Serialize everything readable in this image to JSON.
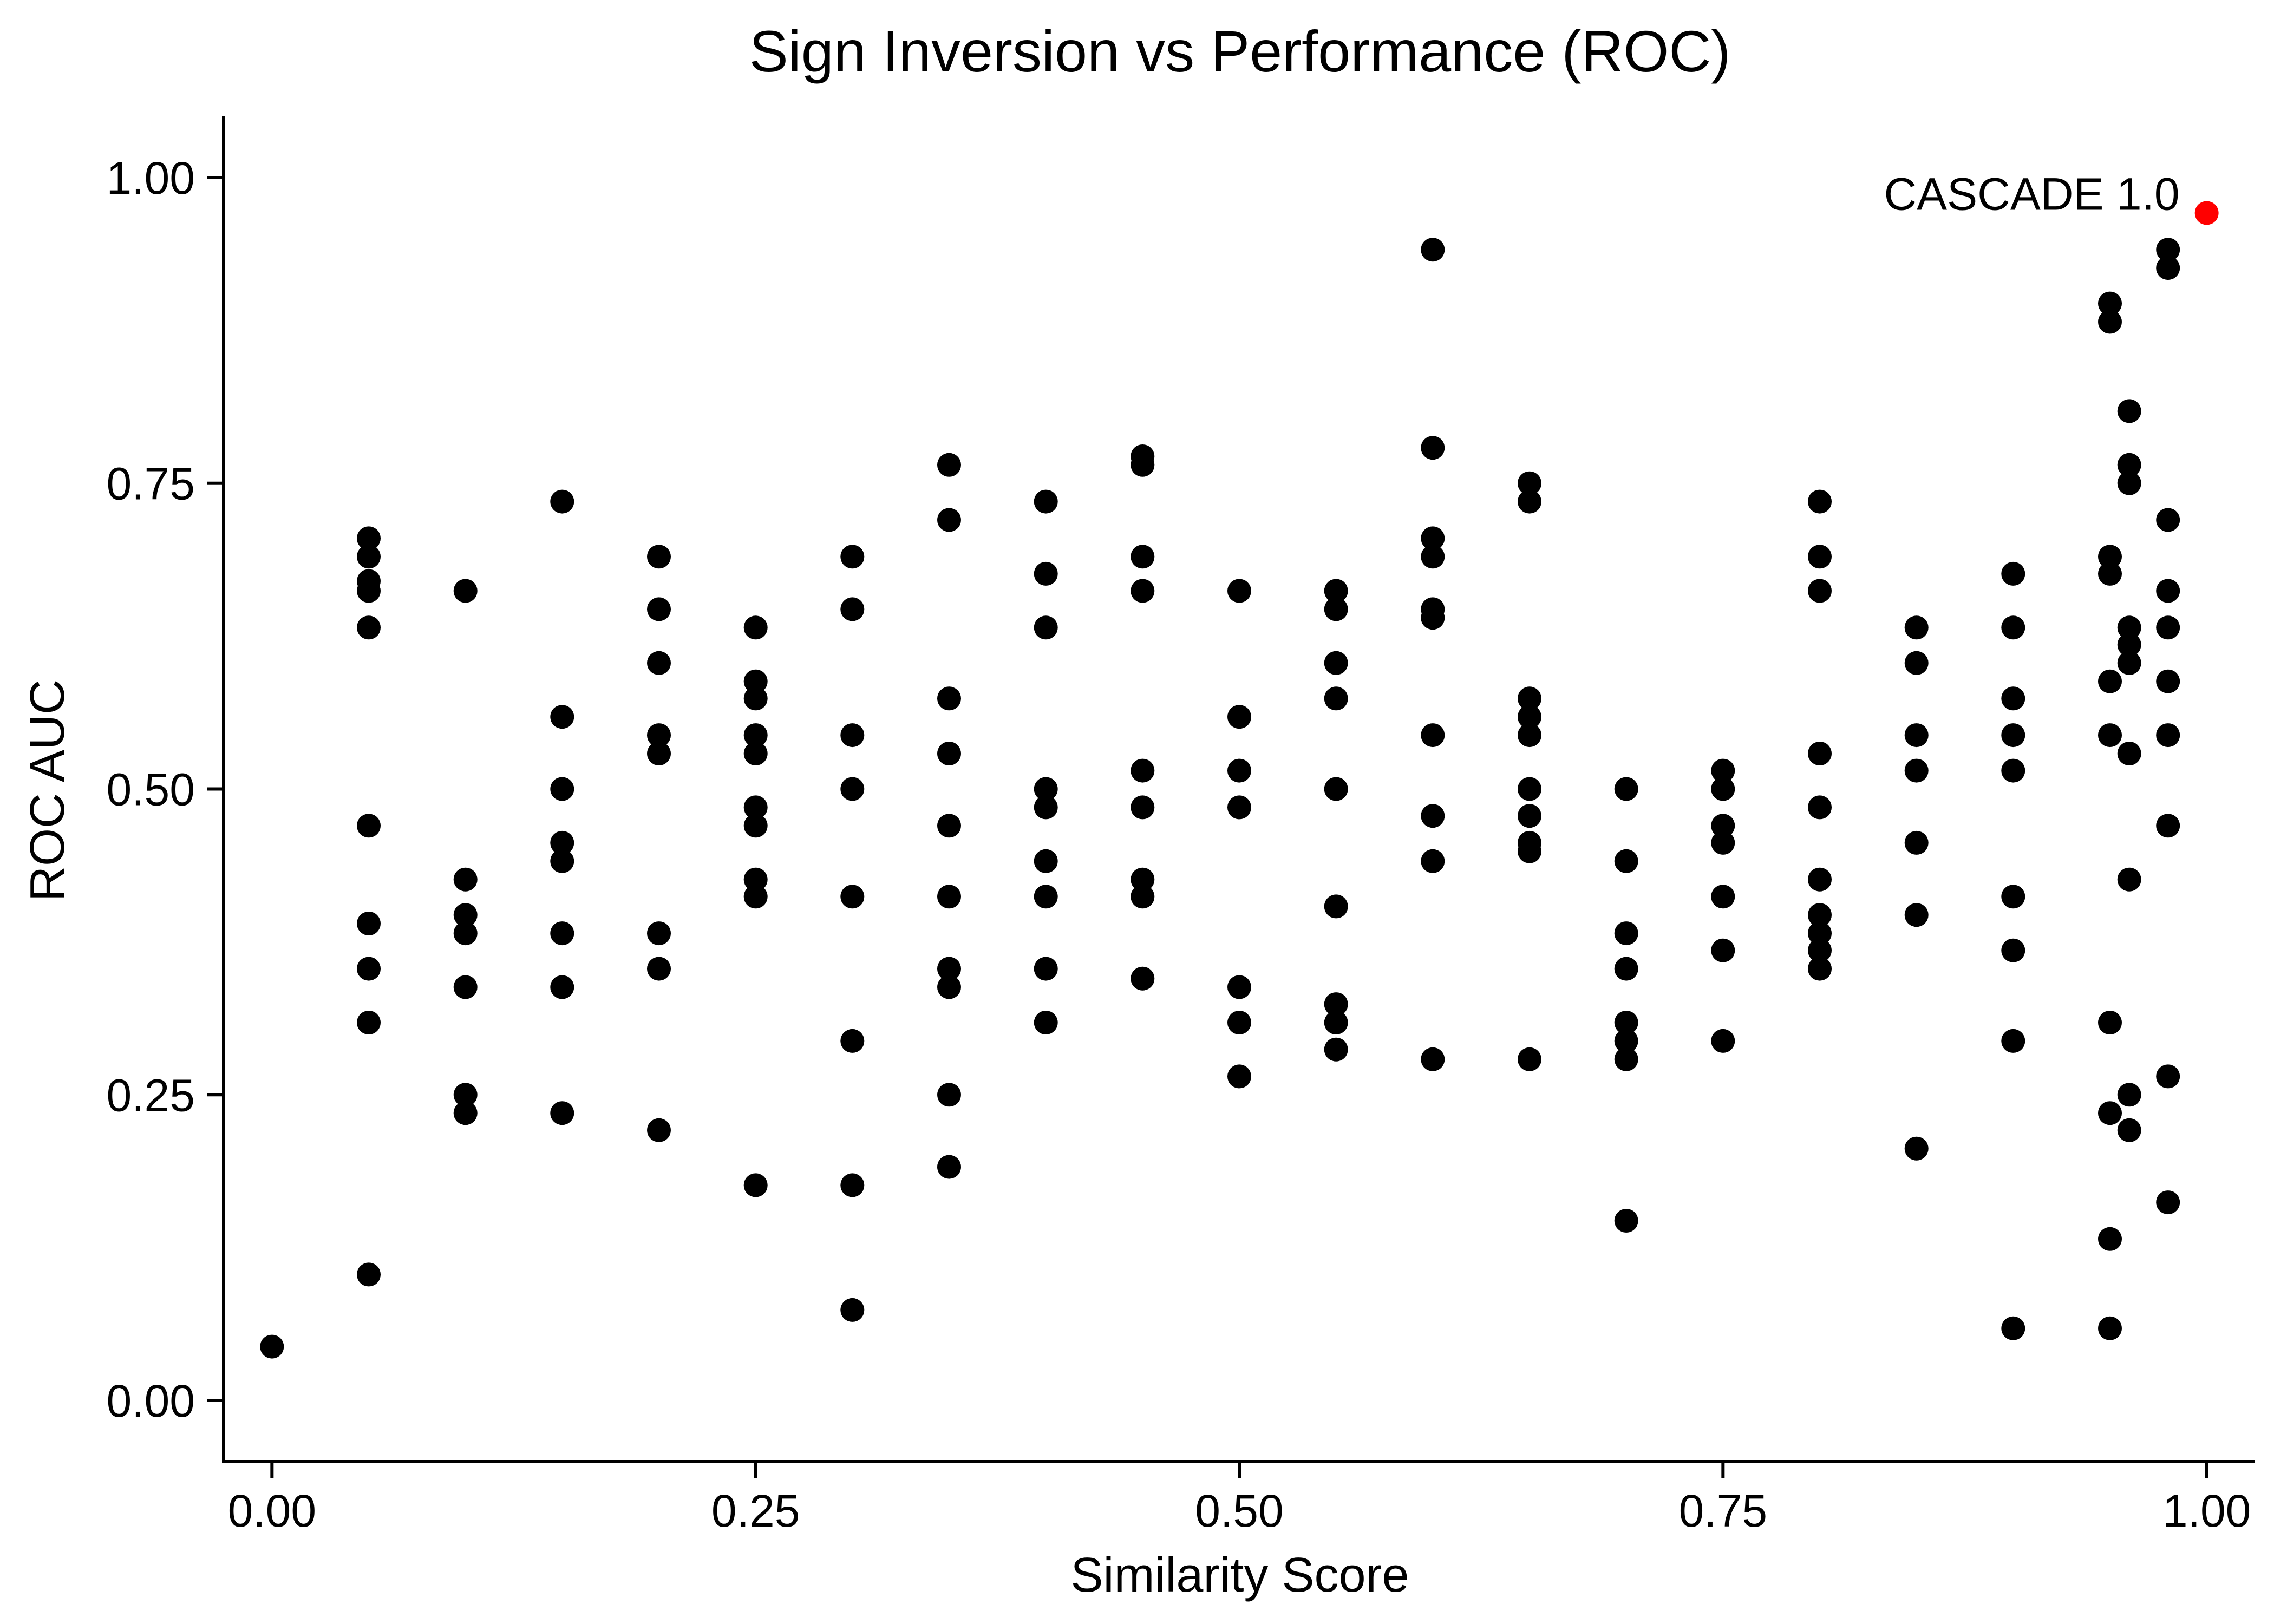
{
  "chart_data": {
    "type": "scatter",
    "title": "Sign Inversion vs Performance (ROC)",
    "xlabel": "Similarity Score",
    "ylabel": "ROC AUC",
    "xlim": [
      -0.025,
      1.025
    ],
    "ylim": [
      -0.05,
      1.05
    ],
    "x_ticks": [
      0,
      0.25,
      0.5,
      0.75,
      1
    ],
    "x_tick_labels": [
      "0.00",
      "0.25",
      "0.50",
      "0.75",
      "1.00"
    ],
    "y_ticks": [
      0,
      0.25,
      0.5,
      0.75,
      1
    ],
    "y_tick_labels": [
      "0.00",
      "0.25",
      "0.50",
      "0.75",
      "1.00"
    ],
    "grid": false,
    "legend": "none",
    "point_color": "#000000",
    "highlight_color": "#ff0000",
    "points": [
      [
        0.0,
        0.044
      ],
      [
        0.05,
        0.705
      ],
      [
        0.05,
        0.69
      ],
      [
        0.05,
        0.67
      ],
      [
        0.05,
        0.662
      ],
      [
        0.05,
        0.632
      ],
      [
        0.05,
        0.47
      ],
      [
        0.05,
        0.39
      ],
      [
        0.05,
        0.353
      ],
      [
        0.05,
        0.309
      ],
      [
        0.05,
        0.103
      ],
      [
        0.1,
        0.662
      ],
      [
        0.1,
        0.426
      ],
      [
        0.1,
        0.397
      ],
      [
        0.1,
        0.382
      ],
      [
        0.1,
        0.338
      ],
      [
        0.1,
        0.25
      ],
      [
        0.1,
        0.235
      ],
      [
        0.15,
        0.735
      ],
      [
        0.15,
        0.559
      ],
      [
        0.15,
        0.5
      ],
      [
        0.15,
        0.456
      ],
      [
        0.15,
        0.441
      ],
      [
        0.15,
        0.382
      ],
      [
        0.15,
        0.338
      ],
      [
        0.15,
        0.235
      ],
      [
        0.2,
        0.69
      ],
      [
        0.2,
        0.647
      ],
      [
        0.2,
        0.603
      ],
      [
        0.2,
        0.544
      ],
      [
        0.2,
        0.529
      ],
      [
        0.2,
        0.382
      ],
      [
        0.2,
        0.353
      ],
      [
        0.2,
        0.221
      ],
      [
        0.25,
        0.632
      ],
      [
        0.25,
        0.588
      ],
      [
        0.25,
        0.574
      ],
      [
        0.25,
        0.544
      ],
      [
        0.25,
        0.529
      ],
      [
        0.25,
        0.485
      ],
      [
        0.25,
        0.47
      ],
      [
        0.25,
        0.426
      ],
      [
        0.25,
        0.412
      ],
      [
        0.25,
        0.176
      ],
      [
        0.3,
        0.69
      ],
      [
        0.3,
        0.647
      ],
      [
        0.3,
        0.544
      ],
      [
        0.3,
        0.5
      ],
      [
        0.3,
        0.412
      ],
      [
        0.3,
        0.294
      ],
      [
        0.3,
        0.176
      ],
      [
        0.3,
        0.074
      ],
      [
        0.35,
        0.765
      ],
      [
        0.35,
        0.72
      ],
      [
        0.35,
        0.574
      ],
      [
        0.35,
        0.529
      ],
      [
        0.35,
        0.47
      ],
      [
        0.35,
        0.412
      ],
      [
        0.35,
        0.353
      ],
      [
        0.35,
        0.338
      ],
      [
        0.35,
        0.25
      ],
      [
        0.35,
        0.191
      ],
      [
        0.4,
        0.735
      ],
      [
        0.4,
        0.676
      ],
      [
        0.4,
        0.632
      ],
      [
        0.4,
        0.5
      ],
      [
        0.4,
        0.485
      ],
      [
        0.4,
        0.441
      ],
      [
        0.4,
        0.412
      ],
      [
        0.4,
        0.353
      ],
      [
        0.4,
        0.309
      ],
      [
        0.45,
        0.772
      ],
      [
        0.45,
        0.765
      ],
      [
        0.45,
        0.69
      ],
      [
        0.45,
        0.662
      ],
      [
        0.45,
        0.515
      ],
      [
        0.45,
        0.485
      ],
      [
        0.45,
        0.426
      ],
      [
        0.45,
        0.412
      ],
      [
        0.45,
        0.345
      ],
      [
        0.5,
        0.662
      ],
      [
        0.5,
        0.559
      ],
      [
        0.5,
        0.515
      ],
      [
        0.5,
        0.485
      ],
      [
        0.5,
        0.338
      ],
      [
        0.5,
        0.309
      ],
      [
        0.5,
        0.265
      ],
      [
        0.55,
        0.662
      ],
      [
        0.55,
        0.647
      ],
      [
        0.55,
        0.603
      ],
      [
        0.55,
        0.574
      ],
      [
        0.55,
        0.5
      ],
      [
        0.55,
        0.404
      ],
      [
        0.55,
        0.324
      ],
      [
        0.55,
        0.309
      ],
      [
        0.55,
        0.287
      ],
      [
        0.6,
        0.941
      ],
      [
        0.6,
        0.779
      ],
      [
        0.6,
        0.705
      ],
      [
        0.6,
        0.69
      ],
      [
        0.6,
        0.647
      ],
      [
        0.6,
        0.64
      ],
      [
        0.6,
        0.544
      ],
      [
        0.6,
        0.478
      ],
      [
        0.6,
        0.441
      ],
      [
        0.6,
        0.279
      ],
      [
        0.65,
        0.75
      ],
      [
        0.65,
        0.735
      ],
      [
        0.65,
        0.574
      ],
      [
        0.65,
        0.559
      ],
      [
        0.65,
        0.544
      ],
      [
        0.65,
        0.5
      ],
      [
        0.65,
        0.478
      ],
      [
        0.65,
        0.456
      ],
      [
        0.65,
        0.449
      ],
      [
        0.65,
        0.279
      ],
      [
        0.7,
        0.5
      ],
      [
        0.7,
        0.441
      ],
      [
        0.7,
        0.382
      ],
      [
        0.7,
        0.353
      ],
      [
        0.7,
        0.309
      ],
      [
        0.7,
        0.294
      ],
      [
        0.7,
        0.279
      ],
      [
        0.7,
        0.147
      ],
      [
        0.75,
        0.515
      ],
      [
        0.75,
        0.5
      ],
      [
        0.75,
        0.47
      ],
      [
        0.75,
        0.456
      ],
      [
        0.75,
        0.412
      ],
      [
        0.75,
        0.368
      ],
      [
        0.75,
        0.294
      ],
      [
        0.8,
        0.735
      ],
      [
        0.8,
        0.69
      ],
      [
        0.8,
        0.662
      ],
      [
        0.8,
        0.529
      ],
      [
        0.8,
        0.485
      ],
      [
        0.8,
        0.426
      ],
      [
        0.8,
        0.397
      ],
      [
        0.8,
        0.382
      ],
      [
        0.8,
        0.368
      ],
      [
        0.8,
        0.353
      ],
      [
        0.85,
        0.632
      ],
      [
        0.85,
        0.603
      ],
      [
        0.85,
        0.544
      ],
      [
        0.85,
        0.515
      ],
      [
        0.85,
        0.456
      ],
      [
        0.85,
        0.397
      ],
      [
        0.85,
        0.206
      ],
      [
        0.9,
        0.676
      ],
      [
        0.9,
        0.632
      ],
      [
        0.9,
        0.574
      ],
      [
        0.9,
        0.544
      ],
      [
        0.9,
        0.515
      ],
      [
        0.9,
        0.412
      ],
      [
        0.9,
        0.368
      ],
      [
        0.9,
        0.294
      ],
      [
        0.9,
        0.059
      ],
      [
        0.95,
        0.897
      ],
      [
        0.95,
        0.882
      ],
      [
        0.95,
        0.69
      ],
      [
        0.95,
        0.676
      ],
      [
        0.95,
        0.588
      ],
      [
        0.95,
        0.544
      ],
      [
        0.95,
        0.309
      ],
      [
        0.95,
        0.235
      ],
      [
        0.95,
        0.132
      ],
      [
        0.95,
        0.059
      ],
      [
        0.96,
        0.809
      ],
      [
        0.96,
        0.765
      ],
      [
        0.96,
        0.75
      ],
      [
        0.96,
        0.632
      ],
      [
        0.96,
        0.618
      ],
      [
        0.96,
        0.603
      ],
      [
        0.96,
        0.529
      ],
      [
        0.96,
        0.426
      ],
      [
        0.96,
        0.25
      ],
      [
        0.96,
        0.221
      ],
      [
        0.98,
        0.941
      ],
      [
        0.98,
        0.926
      ],
      [
        0.98,
        0.72
      ],
      [
        0.98,
        0.662
      ],
      [
        0.98,
        0.632
      ],
      [
        0.98,
        0.588
      ],
      [
        0.98,
        0.544
      ],
      [
        0.98,
        0.47
      ],
      [
        0.98,
        0.265
      ],
      [
        0.98,
        0.162
      ]
    ],
    "highlight": {
      "label": "CASCADE 1.0",
      "x": 1.0,
      "y": 0.971
    }
  }
}
